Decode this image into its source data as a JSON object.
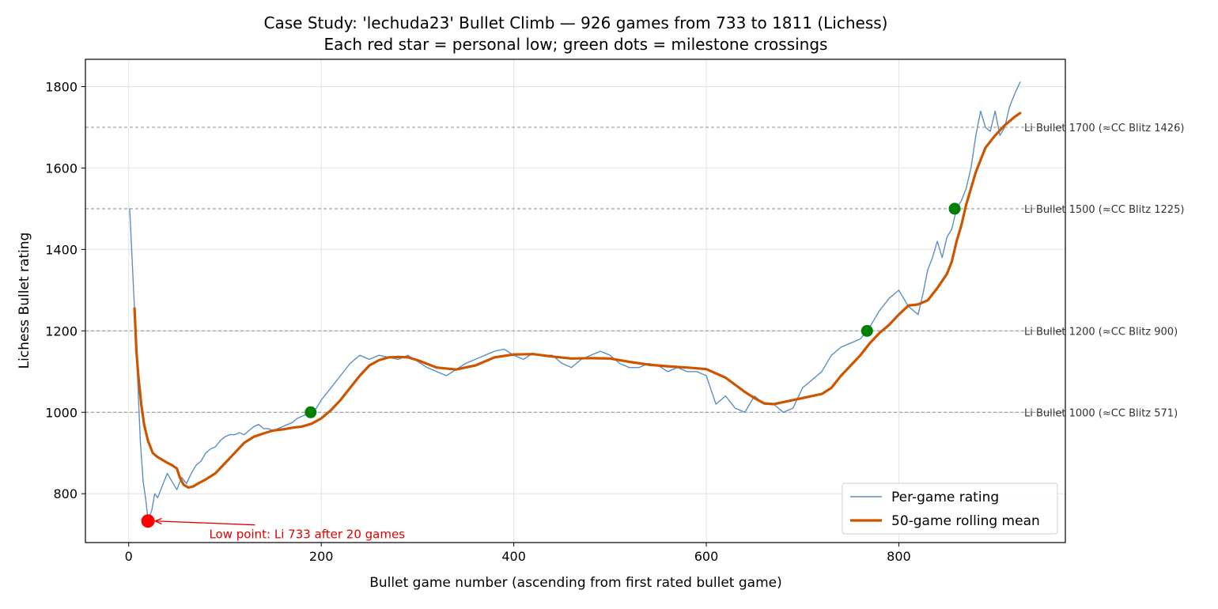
{
  "chart_data": {
    "type": "line",
    "title": "Case Study: 'lechuda23' Bullet Climb — 926 games from 733 to 1811 (Lichess)",
    "subtitle": "Each red star = personal low; green dots = milestone crossings",
    "xlabel": "Bullet game number (ascending from first rated bullet game)",
    "ylabel": "Lichess Bullet rating",
    "xlim": [
      -45,
      973
    ],
    "ylim": [
      680,
      1867
    ],
    "x_ticks": [
      0,
      200,
      400,
      600,
      800
    ],
    "y_ticks": [
      800,
      1000,
      1200,
      1400,
      1600,
      1800
    ],
    "grid": true,
    "legend_position": "lower-right",
    "series": [
      {
        "name": "Per-game rating",
        "color": "#5b8fc7",
        "x": [
          1,
          5,
          8,
          12,
          15,
          18,
          20,
          24,
          27,
          30,
          35,
          40,
          45,
          50,
          55,
          60,
          65,
          70,
          75,
          80,
          85,
          90,
          95,
          100,
          105,
          110,
          115,
          120,
          125,
          130,
          135,
          140,
          145,
          150,
          155,
          160,
          165,
          170,
          175,
          180,
          185,
          190,
          195,
          200,
          210,
          220,
          230,
          240,
          250,
          260,
          270,
          280,
          290,
          300,
          310,
          320,
          330,
          340,
          350,
          360,
          370,
          380,
          390,
          400,
          410,
          420,
          430,
          440,
          450,
          460,
          470,
          480,
          490,
          500,
          510,
          520,
          530,
          540,
          550,
          560,
          570,
          580,
          590,
          600,
          610,
          620,
          630,
          640,
          650,
          660,
          670,
          680,
          690,
          700,
          710,
          720,
          730,
          740,
          750,
          760,
          770,
          780,
          790,
          800,
          810,
          820,
          825,
          830,
          835,
          840,
          845,
          850,
          855,
          860,
          865,
          870,
          875,
          880,
          885,
          890,
          895,
          900,
          905,
          910,
          915,
          920,
          926
        ],
        "values": [
          1500,
          1300,
          1150,
          930,
          830,
          780,
          733,
          760,
          800,
          790,
          820,
          850,
          830,
          810,
          840,
          825,
          850,
          870,
          880,
          900,
          910,
          915,
          930,
          940,
          945,
          945,
          950,
          945,
          955,
          965,
          970,
          960,
          960,
          955,
          960,
          965,
          970,
          975,
          985,
          990,
          995,
          1000,
          1010,
          1030,
          1060,
          1090,
          1120,
          1140,
          1130,
          1140,
          1135,
          1130,
          1140,
          1125,
          1110,
          1100,
          1090,
          1105,
          1120,
          1130,
          1140,
          1150,
          1155,
          1140,
          1130,
          1145,
          1140,
          1140,
          1120,
          1110,
          1130,
          1140,
          1150,
          1140,
          1120,
          1110,
          1110,
          1120,
          1115,
          1100,
          1110,
          1100,
          1100,
          1090,
          1020,
          1040,
          1010,
          1000,
          1040,
          1020,
          1020,
          1000,
          1010,
          1060,
          1080,
          1100,
          1140,
          1160,
          1170,
          1180,
          1210,
          1250,
          1280,
          1300,
          1260,
          1240,
          1290,
          1350,
          1380,
          1420,
          1380,
          1430,
          1450,
          1500,
          1520,
          1550,
          1600,
          1680,
          1740,
          1700,
          1690,
          1740,
          1680,
          1700,
          1750,
          1780,
          1811
        ]
      },
      {
        "name": "50-game rolling mean",
        "color": "#cc5500",
        "x": [
          6,
          8,
          10,
          13,
          16,
          20,
          25,
          30,
          35,
          40,
          45,
          50,
          53,
          57,
          62,
          67,
          72,
          80,
          90,
          100,
          110,
          120,
          130,
          140,
          150,
          160,
          170,
          180,
          190,
          200,
          210,
          220,
          230,
          240,
          250,
          260,
          270,
          280,
          290,
          300,
          320,
          340,
          360,
          380,
          400,
          420,
          440,
          460,
          480,
          500,
          520,
          540,
          560,
          580,
          600,
          620,
          640,
          650,
          660,
          670,
          680,
          700,
          720,
          730,
          740,
          750,
          760,
          770,
          780,
          790,
          800,
          810,
          820,
          830,
          840,
          850,
          855,
          860,
          865,
          870,
          880,
          890,
          900,
          910,
          920,
          926
        ],
        "values": [
          1255,
          1150,
          1090,
          1020,
          970,
          930,
          900,
          890,
          883,
          876,
          870,
          862,
          840,
          822,
          815,
          818,
          825,
          835,
          850,
          875,
          900,
          925,
          940,
          948,
          955,
          958,
          962,
          965,
          972,
          985,
          1005,
          1030,
          1060,
          1090,
          1115,
          1128,
          1135,
          1136,
          1135,
          1128,
          1110,
          1105,
          1115,
          1135,
          1142,
          1143,
          1137,
          1132,
          1133,
          1132,
          1124,
          1117,
          1113,
          1110,
          1106,
          1085,
          1050,
          1035,
          1022,
          1020,
          1025,
          1035,
          1045,
          1060,
          1090,
          1115,
          1140,
          1170,
          1195,
          1215,
          1240,
          1262,
          1265,
          1275,
          1305,
          1340,
          1370,
          1420,
          1460,
          1510,
          1590,
          1650,
          1680,
          1705,
          1725,
          1735
        ]
      }
    ],
    "reference_lines": [
      {
        "y": 1700,
        "label": "Li Bullet 1700 (≈CC Blitz 1426)"
      },
      {
        "y": 1500,
        "label": "Li Bullet 1500 (≈CC Blitz 1225)"
      },
      {
        "y": 1200,
        "label": "Li Bullet 1200 (≈CC Blitz 900)"
      },
      {
        "y": 1000,
        "label": "Li Bullet 1000 (≈CC Blitz 571)"
      }
    ],
    "milestones": [
      {
        "x": 189,
        "y": 1000
      },
      {
        "x": 767,
        "y": 1200
      },
      {
        "x": 858,
        "y": 1500
      }
    ],
    "low_point": {
      "x": 20,
      "y": 733,
      "color": "#ff0000"
    },
    "annotation": {
      "text": "Low point: Li 733 after 20 games",
      "x": 100,
      "y": 700
    },
    "colors": {
      "per_game": "#5b8fc7",
      "rolling_mean": "#cc5500",
      "milestone": "#008000",
      "low_point": "#ff0000",
      "reference_line": "#999999"
    }
  }
}
